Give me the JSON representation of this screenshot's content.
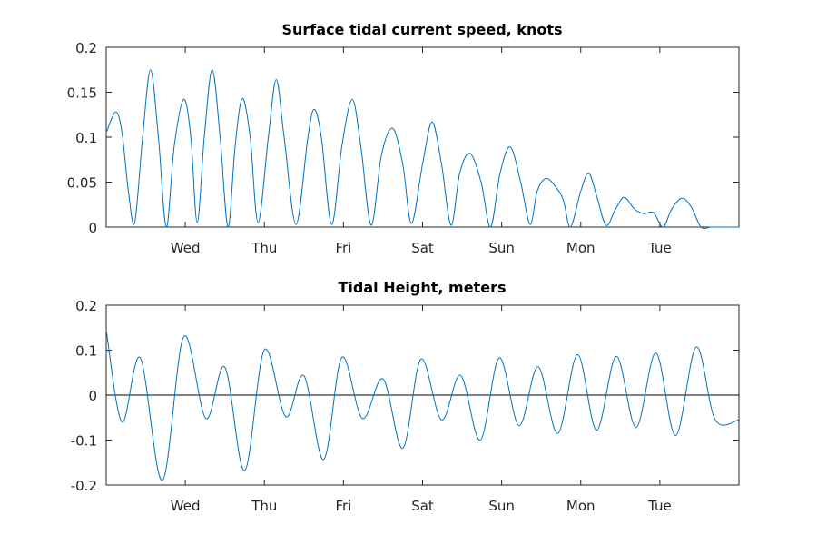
{
  "chart_data": [
    {
      "type": "line",
      "title": "Surface tidal current speed, knots",
      "xlabel": "",
      "ylabel": "",
      "xlim": [
        0,
        8
      ],
      "ylim": [
        0,
        0.2
      ],
      "yticks": [
        0,
        0.05,
        0.1,
        0.15,
        0.2
      ],
      "ytick_labels": [
        "0",
        "0.05",
        "0.1",
        "0.15",
        "0.2"
      ],
      "xticks": [
        1,
        2,
        3,
        4,
        5,
        6,
        7
      ],
      "xtick_labels": [
        "Wed",
        "Thu",
        "Fri",
        "Sat",
        "Sun",
        "Mon",
        "Tue"
      ],
      "grid": false,
      "legend": "none",
      "series_color": "#0072bd",
      "series": [
        {
          "x": [
            0,
            0.12,
            0.2,
            0.28,
            0.36,
            0.46,
            0.56,
            0.66,
            0.76,
            0.86,
            0.98,
            1.07,
            1.15,
            1.24,
            1.34,
            1.44,
            1.54,
            1.63,
            1.72,
            1.82,
            1.92,
            2.05,
            2.15,
            2.25,
            2.4,
            2.55,
            2.63,
            2.72,
            2.85,
            2.98,
            3.11,
            3.22,
            3.35,
            3.48,
            3.62,
            3.75,
            3.86,
            4.0,
            4.12,
            4.24,
            4.36,
            4.47,
            4.6,
            4.74,
            4.86,
            4.98,
            5.11,
            5.24,
            5.36,
            5.45,
            5.56,
            5.68,
            5.78,
            5.87,
            6.0,
            6.1,
            6.2,
            6.32,
            6.44,
            6.55,
            6.68,
            6.8,
            6.92,
            7.04,
            7.15,
            7.28,
            7.4,
            7.52,
            7.64,
            7.76,
            7.87,
            8.0
          ],
          "y": [
            0.105,
            0.128,
            0.105,
            0.04,
            0.005,
            0.1,
            0.175,
            0.1,
            0.0,
            0.09,
            0.142,
            0.1,
            0.005,
            0.1,
            0.175,
            0.1,
            0.0,
            0.09,
            0.143,
            0.1,
            0.005,
            0.1,
            0.164,
            0.1,
            0.003,
            0.1,
            0.131,
            0.1,
            0.003,
            0.09,
            0.142,
            0.09,
            0.002,
            0.08,
            0.11,
            0.07,
            0.004,
            0.07,
            0.117,
            0.07,
            0.002,
            0.06,
            0.082,
            0.05,
            0.0,
            0.06,
            0.089,
            0.05,
            0.003,
            0.04,
            0.054,
            0.045,
            0.03,
            0.0,
            0.04,
            0.06,
            0.035,
            0.002,
            0.02,
            0.033,
            0.02,
            0.015,
            0.016,
            0.0,
            0.02,
            0.032,
            0.022,
            0.0,
            0.0,
            0.0,
            0.0,
            0.0
          ]
        }
      ]
    },
    {
      "type": "line",
      "title": "Tidal Height, meters",
      "xlabel": "",
      "ylabel": "",
      "xlim": [
        0,
        8
      ],
      "ylim": [
        -0.2,
        0.2
      ],
      "yticks": [
        -0.2,
        -0.1,
        0,
        0.1,
        0.2
      ],
      "ytick_labels": [
        "-0.2",
        "-0.1",
        "0",
        "0.1",
        "0.2"
      ],
      "xticks": [
        1,
        2,
        3,
        4,
        5,
        6,
        7
      ],
      "xtick_labels": [
        "Wed",
        "Thu",
        "Fri",
        "Sat",
        "Sun",
        "Mon",
        "Tue"
      ],
      "zero_line": true,
      "grid": false,
      "legend": "none",
      "series_color": "#0072bd",
      "series": [
        {
          "x": [
            0,
            0.2,
            0.43,
            0.71,
            0.98,
            1.26,
            1.5,
            1.75,
            2.0,
            2.27,
            2.5,
            2.75,
            2.98,
            3.24,
            3.5,
            3.75,
            3.98,
            4.24,
            4.48,
            4.73,
            4.97,
            5.22,
            5.46,
            5.71,
            5.96,
            6.2,
            6.45,
            6.7,
            6.95,
            7.2,
            7.46,
            7.7,
            8.0
          ],
          "y": [
            0.145,
            -0.06,
            0.083,
            -0.19,
            0.13,
            -0.052,
            0.062,
            -0.168,
            0.101,
            -0.048,
            0.043,
            -0.143,
            0.084,
            -0.052,
            0.036,
            -0.118,
            0.08,
            -0.055,
            0.044,
            -0.1,
            0.083,
            -0.068,
            0.063,
            -0.085,
            0.09,
            -0.078,
            0.086,
            -0.072,
            0.094,
            -0.09,
            0.107,
            -0.055,
            -0.055
          ]
        }
      ]
    }
  ]
}
